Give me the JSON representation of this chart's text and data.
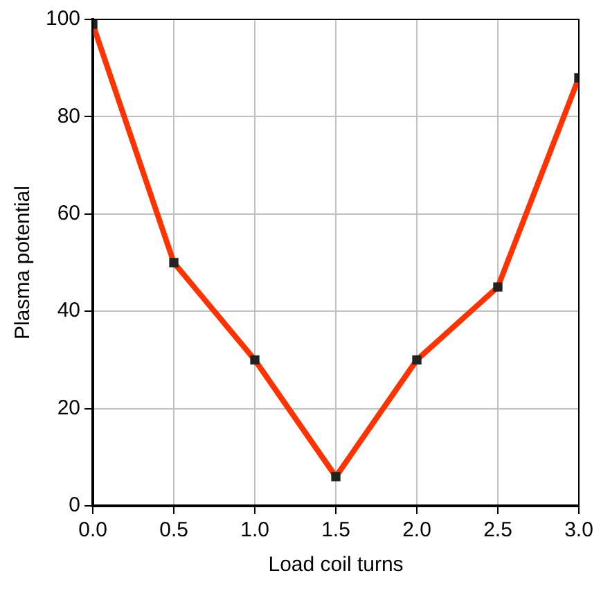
{
  "chart_data": {
    "type": "line",
    "xlabel": "Load coil turns",
    "ylabel": "Plasma potential",
    "x": [
      0,
      0.5,
      1,
      1.5,
      2,
      2.5,
      3
    ],
    "series": [
      {
        "color": "#ff3300",
        "values": [
          99,
          50,
          30,
          6,
          30,
          45,
          88
        ]
      }
    ],
    "xlim": [
      0,
      3
    ],
    "xticks": [
      {
        "value": 0,
        "label": "0.0"
      },
      {
        "value": 0.5,
        "label": "0.5"
      },
      {
        "value": 1,
        "label": "1.0"
      },
      {
        "value": 1.5,
        "label": "1.5"
      },
      {
        "value": 2,
        "label": "2.0"
      },
      {
        "value": 2.5,
        "label": "2.5"
      },
      {
        "value": 3,
        "label": "3.0"
      }
    ],
    "ylim": [
      0,
      100
    ],
    "yticks": [
      0,
      20,
      40,
      60,
      80,
      100
    ],
    "grid": true,
    "marker": "square",
    "line_style": "solid",
    "legend": false
  }
}
